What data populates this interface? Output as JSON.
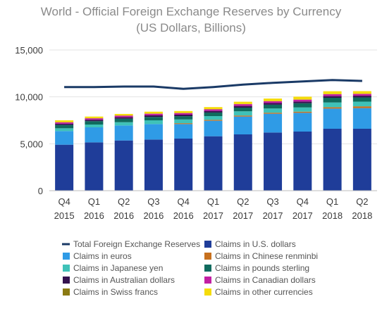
{
  "chart_data": {
    "type": "bar",
    "title": "World - Official Foreign Exchange Reserves by Currency",
    "subtitle": "(US Dollars, Billions)",
    "categories": [
      [
        "Q4",
        "2015"
      ],
      [
        "Q1",
        "2016"
      ],
      [
        "Q2",
        "2016"
      ],
      [
        "Q3",
        "2016"
      ],
      [
        "Q4",
        "2016"
      ],
      [
        "Q1",
        "2017"
      ],
      [
        "Q2",
        "2017"
      ],
      [
        "Q3",
        "2017"
      ],
      [
        "Q4",
        "2017"
      ],
      [
        "Q1",
        "2018"
      ],
      [
        "Q2",
        "2018"
      ]
    ],
    "ylim": [
      0,
      15000
    ],
    "yticks": [
      "0",
      "5,000",
      "10,000",
      "15,000"
    ],
    "ytick_values": [
      0,
      5000,
      10000,
      15000
    ],
    "stacked": true,
    "series": [
      {
        "name": "Claims in U.S. dollars",
        "color": "#1f3d99",
        "values": [
          4900,
          5150,
          5350,
          5450,
          5550,
          5800,
          6000,
          6200,
          6300,
          6600,
          6600
        ]
      },
      {
        "name": "Claims in euros",
        "color": "#2f9be6",
        "values": [
          1450,
          1600,
          1600,
          1650,
          1550,
          1650,
          1900,
          2000,
          2000,
          2150,
          2200
        ]
      },
      {
        "name": "Claims in Chinese renminbi",
        "color": "#c7701e",
        "values": [
          0,
          0,
          0,
          0,
          90,
          100,
          110,
          110,
          120,
          150,
          190
        ]
      },
      {
        "name": "Claims in Japanese yen",
        "color": "#3fc2b8",
        "values": [
          300,
          300,
          350,
          400,
          400,
          400,
          450,
          450,
          450,
          500,
          500
        ]
      },
      {
        "name": "Claims in pounds sterling",
        "color": "#0f6b5e",
        "values": [
          350,
          360,
          370,
          360,
          350,
          380,
          390,
          400,
          450,
          500,
          450
        ]
      },
      {
        "name": "Claims in Australian dollars",
        "color": "#34124f",
        "values": [
          140,
          150,
          160,
          170,
          160,
          170,
          180,
          180,
          180,
          180,
          180
        ]
      },
      {
        "name": "Claims in Canadian dollars",
        "color": "#c21fa3",
        "values": [
          140,
          150,
          160,
          170,
          170,
          170,
          190,
          190,
          200,
          200,
          190
        ]
      },
      {
        "name": "Claims in Swiss francs",
        "color": "#8b7a12",
        "values": [
          20,
          20,
          20,
          20,
          20,
          20,
          20,
          20,
          20,
          20,
          20
        ]
      },
      {
        "name": "Claims in other currencies",
        "color": "#f5dc0a",
        "values": [
          200,
          170,
          170,
          200,
          200,
          220,
          240,
          270,
          300,
          300,
          280
        ]
      }
    ],
    "line_series": {
      "name": "Total Foreign Exchange Reserves",
      "color": "#1a3a66",
      "values": [
        11050,
        11050,
        11100,
        11100,
        10850,
        11050,
        11300,
        11500,
        11650,
        11800,
        11700
      ]
    },
    "legend": {
      "placement": "bottom",
      "entries": [
        {
          "label": "Total Foreign Exchange Reserves",
          "color": "#1a3a66",
          "kind": "line"
        },
        {
          "label": "Claims in U.S. dollars",
          "color": "#1f3d99",
          "kind": "box"
        },
        {
          "label": "Claims in euros",
          "color": "#2f9be6",
          "kind": "box"
        },
        {
          "label": "Claims in Chinese renminbi",
          "color": "#c7701e",
          "kind": "box"
        },
        {
          "label": "Claims in Japanese yen",
          "color": "#3fc2b8",
          "kind": "box"
        },
        {
          "label": "Claims in pounds sterling",
          "color": "#0f6b5e",
          "kind": "box"
        },
        {
          "label": "Claims in Australian dollars",
          "color": "#34124f",
          "kind": "box"
        },
        {
          "label": "Claims in Canadian dollars",
          "color": "#c21fa3",
          "kind": "box"
        },
        {
          "label": "Claims in Swiss francs",
          "color": "#8b7a12",
          "kind": "box"
        },
        {
          "label": "Claims in other currencies",
          "color": "#f5dc0a",
          "kind": "box"
        }
      ]
    },
    "grid": "horizontal"
  }
}
